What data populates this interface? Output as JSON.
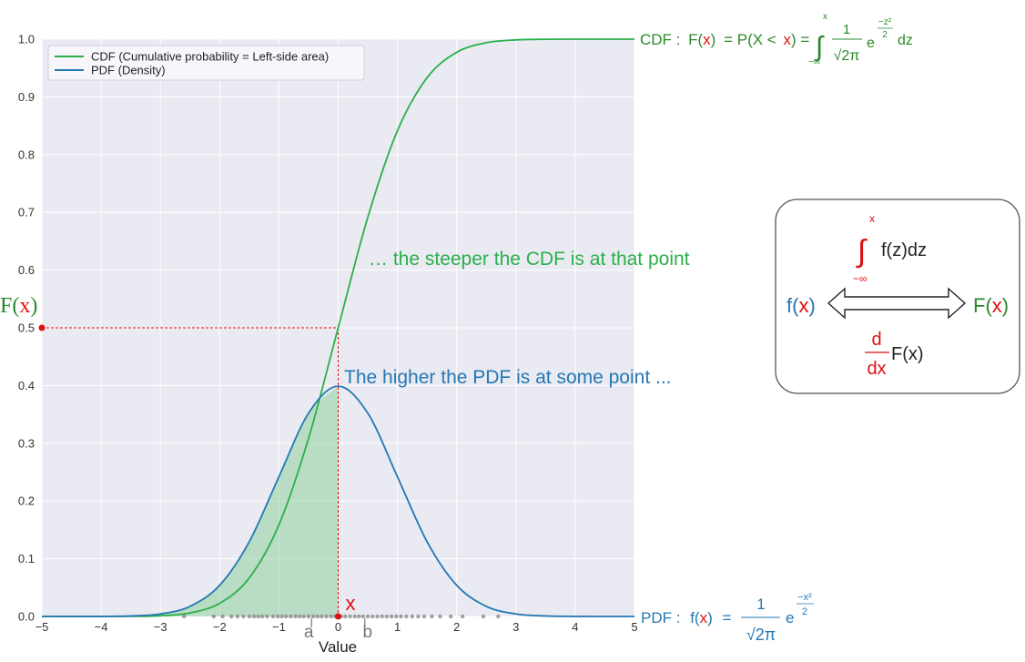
{
  "chart_data": {
    "type": "line",
    "title": "",
    "xlabel": "Value",
    "ylabel": "",
    "xlim": [
      -5,
      5
    ],
    "ylim": [
      0,
      1.0
    ],
    "x_ticks": [
      "−5",
      "−4",
      "−3",
      "−2",
      "−1",
      "0",
      "1",
      "2",
      "3",
      "4",
      "5"
    ],
    "y_ticks": [
      "0.0",
      "0.1",
      "0.2",
      "0.3",
      "0.4",
      "0.5",
      "0.6",
      "0.7",
      "0.8",
      "0.9",
      "1.0"
    ],
    "grid": true,
    "legend_position": "top-left",
    "x": [
      -5,
      -4.5,
      -4,
      -3.5,
      -3,
      -2.5,
      -2,
      -1.5,
      -1,
      -0.5,
      0,
      0.5,
      1,
      1.5,
      2,
      2.5,
      3,
      3.5,
      4,
      4.5,
      5
    ],
    "series": [
      {
        "name": "CDF (Cumulative probability = Left-side area)",
        "color": "#2ab04a",
        "values": [
          0.0,
          0.0,
          0.0,
          0.0002,
          0.0013,
          0.0062,
          0.0228,
          0.0668,
          0.1587,
          0.3085,
          0.5,
          0.6915,
          0.8413,
          0.9332,
          0.9772,
          0.9938,
          0.9987,
          0.9998,
          1.0,
          1.0,
          1.0
        ]
      },
      {
        "name": "PDF (Density)",
        "color": "#2478b4",
        "values": [
          0.0,
          0.0,
          0.0001,
          0.0009,
          0.0044,
          0.0175,
          0.054,
          0.1295,
          0.242,
          0.3521,
          0.3989,
          0.3521,
          0.242,
          0.1295,
          0.054,
          0.0175,
          0.0044,
          0.0009,
          0.0001,
          0.0,
          0.0
        ]
      }
    ],
    "shaded_region": {
      "under": "PDF (Density)",
      "from": -5,
      "to": 0,
      "color": "#8fd19e"
    },
    "marked_point": {
      "x": 0,
      "y": 0.5,
      "color": "#dd1111",
      "x_label": "x",
      "y_label_prefix": "F(",
      "y_label_var": "x",
      "y_label_suffix": ")"
    },
    "samples_strip": {
      "y": 0,
      "color": "#888888",
      "x": [
        -2.6,
        -2.1,
        -1.95,
        -1.8,
        -1.7,
        -1.6,
        -1.5,
        -1.42,
        -1.35,
        -1.28,
        -1.2,
        -1.1,
        -1.02,
        -0.95,
        -0.88,
        -0.8,
        -0.72,
        -0.65,
        -0.58,
        -0.5,
        -0.42,
        -0.35,
        -0.28,
        -0.2,
        -0.12,
        -0.05,
        0.05,
        0.12,
        0.2,
        0.28,
        0.35,
        0.42,
        0.5,
        0.58,
        0.66,
        0.74,
        0.82,
        0.9,
        0.98,
        1.06,
        1.15,
        1.25,
        1.35,
        1.45,
        1.58,
        1.72,
        1.9,
        2.1,
        2.45,
        2.7
      ]
    },
    "interval_labels": {
      "a": "a",
      "b": "b",
      "a_x": -0.45,
      "b_x": 0.45
    },
    "annotations": {
      "cdf_steeper": "… the steeper the CDF is at that point",
      "pdf_higher": "The higher the PDF is at some point ..."
    }
  },
  "formulas": {
    "cdf_formula": {
      "lead": "CDF :",
      "lhs_f": "F(",
      "lhs_x": "x",
      "lhs_close": ")",
      "mid_open": "= P(X <",
      "mid_x": "x",
      "mid_close": ") =",
      "upper": "x",
      "lower": "−∞",
      "numerator": "1",
      "denominator": "√2π",
      "e": "e",
      "exponent_num": "−z²",
      "exponent_den": "2",
      "dz": "dz",
      "color": "#2a8a2a",
      "var_color": "#dd1111"
    },
    "pdf_formula": {
      "lead": "PDF :",
      "lhs_f": "f(",
      "lhs_x": "x",
      "lhs_close": ")",
      "equals": "=",
      "numerator": "1",
      "denominator": "√2π",
      "e": "e",
      "exponent_num": "−x²",
      "exponent_den": "2",
      "color": "#2478b4",
      "var_color": "#dd1111"
    }
  },
  "relation_box": {
    "integral_upper": "x",
    "integral_lower": "−∞",
    "integrand": "f(z)dz",
    "left_f": "f(",
    "left_x": "x",
    "left_close": ")",
    "right_f": "F(",
    "right_x": "x",
    "right_close": ")",
    "deriv_num": "d",
    "deriv_den": "dx",
    "deriv_target": "F(x)",
    "pdf_color": "#2478b4",
    "cdf_color": "#2a8a2a",
    "var_color": "#dd1111",
    "integral_color": "#dd1111"
  }
}
